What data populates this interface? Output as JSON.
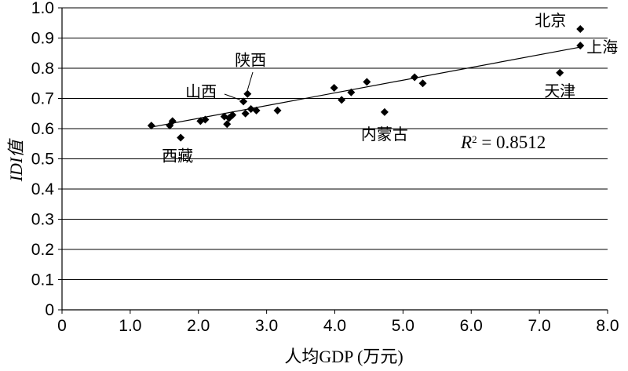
{
  "chart_data": {
    "type": "scatter",
    "xlabel": "人均GDP (万元)",
    "ylabel": "IDI值",
    "xlim": [
      0,
      8
    ],
    "ylim": [
      0,
      1
    ],
    "x_ticks": [
      "0",
      "1.0",
      "2.0",
      "3.0",
      "4.0",
      "5.0",
      "6.0",
      "7.0",
      "8.0"
    ],
    "y_ticks": [
      "0",
      "0.1",
      "0.2",
      "0.3",
      "0.4",
      "0.5",
      "0.6",
      "0.7",
      "0.8",
      "0.9",
      "1.0"
    ],
    "grid": "horizontal",
    "points": [
      {
        "x": 1.31,
        "y": 0.61
      },
      {
        "x": 1.58,
        "y": 0.61
      },
      {
        "x": 1.62,
        "y": 0.625
      },
      {
        "x": 1.74,
        "y": 0.57
      },
      {
        "x": 2.03,
        "y": 0.625
      },
      {
        "x": 2.1,
        "y": 0.63
      },
      {
        "x": 2.38,
        "y": 0.64
      },
      {
        "x": 2.42,
        "y": 0.615
      },
      {
        "x": 2.45,
        "y": 0.635
      },
      {
        "x": 2.5,
        "y": 0.645
      },
      {
        "x": 2.66,
        "y": 0.69
      },
      {
        "x": 2.69,
        "y": 0.65
      },
      {
        "x": 2.72,
        "y": 0.715
      },
      {
        "x": 2.77,
        "y": 0.665
      },
      {
        "x": 2.85,
        "y": 0.66
      },
      {
        "x": 3.16,
        "y": 0.66
      },
      {
        "x": 3.99,
        "y": 0.735
      },
      {
        "x": 4.1,
        "y": 0.695
      },
      {
        "x": 4.24,
        "y": 0.72
      },
      {
        "x": 4.47,
        "y": 0.755
      },
      {
        "x": 4.73,
        "y": 0.655
      },
      {
        "x": 5.17,
        "y": 0.77
      },
      {
        "x": 5.29,
        "y": 0.75
      },
      {
        "x": 7.3,
        "y": 0.785
      },
      {
        "x": 7.6,
        "y": 0.93
      },
      {
        "x": 7.6,
        "y": 0.875
      }
    ],
    "trendline": {
      "x": [
        1.31,
        7.6
      ],
      "y": [
        0.605,
        0.87
      ]
    },
    "annotations": [
      {
        "text": "北京",
        "x": 7.6,
        "y": 0.93
      },
      {
        "text": "上海",
        "x": 7.6,
        "y": 0.875
      },
      {
        "text": "天津",
        "x": 7.3,
        "y": 0.785
      },
      {
        "text": "内蒙古",
        "x": 4.73,
        "y": 0.655
      },
      {
        "text": "陕西",
        "x": 2.72,
        "y": 0.715
      },
      {
        "text": "山西",
        "x": 2.66,
        "y": 0.69
      },
      {
        "text": "西藏",
        "x": 1.74,
        "y": 0.57
      }
    ],
    "r_squared": {
      "label": "R",
      "sup": "2",
      "value": " = 0.8512"
    }
  }
}
